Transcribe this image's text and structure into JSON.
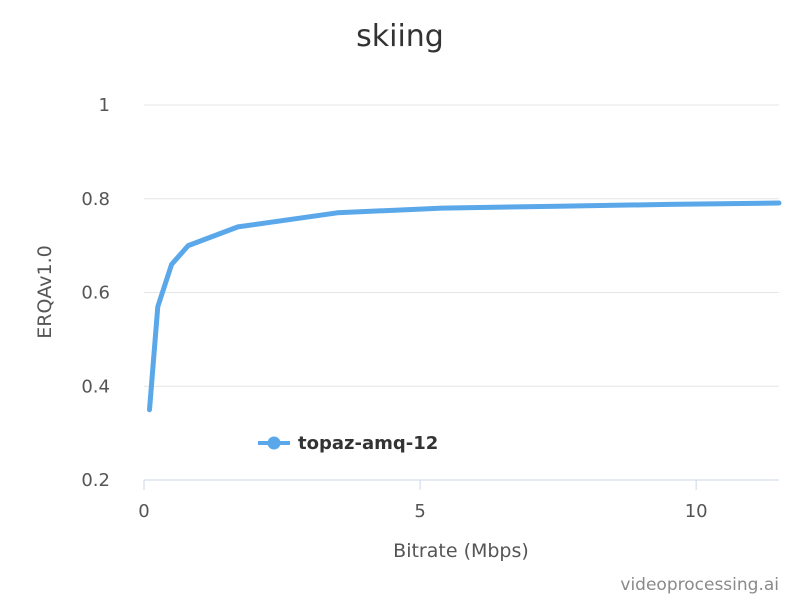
{
  "chart_data": {
    "type": "line",
    "title": "skiing",
    "xlabel": "Bitrate (Mbps)",
    "ylabel": "ERQAv1.0",
    "xlim": [
      0,
      11.5
    ],
    "ylim": [
      0.2,
      1.0
    ],
    "xticks": [
      "0",
      "5",
      "10"
    ],
    "yticks": [
      "0.2",
      "0.4",
      "0.6",
      "0.8",
      "1"
    ],
    "grid": true,
    "legend_position": "bottom-left",
    "series": [
      {
        "name": "topaz-amq-12",
        "color": "#5aa8ea",
        "x": [
          0.1,
          0.25,
          0.5,
          0.8,
          1.7,
          3.5,
          5.4,
          7.5,
          9.5,
          11.5
        ],
        "y": [
          0.35,
          0.57,
          0.66,
          0.7,
          0.74,
          0.77,
          0.78,
          0.784,
          0.788,
          0.791
        ]
      }
    ]
  },
  "credit": "videoprocessing.ai"
}
